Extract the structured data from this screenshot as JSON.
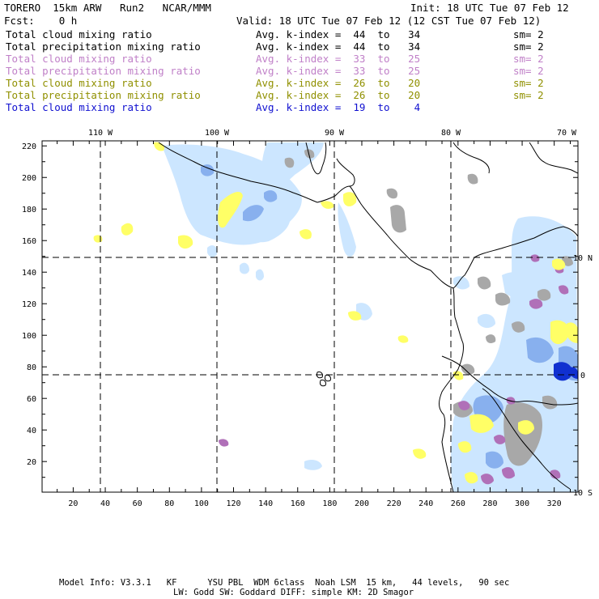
{
  "header": {
    "model": "TORERO  15km ARW   Run2   NCAR/MMM",
    "init": "Init: 18 UTC Tue 07 Feb 12",
    "fcst": "Fcst:    0 h",
    "valid": "Valid: 18 UTC Tue 07 Feb 12 (12 CST Tue 07 Feb 12)"
  },
  "legend": [
    {
      "field": "Total cloud mixing ratio",
      "avg": "Avg. k-index =  44  to   34",
      "sm": "sm= 2",
      "color": "#000000"
    },
    {
      "field": "Total precipitation mixing ratio",
      "avg": "Avg. k-index =  44  to   34",
      "sm": "sm= 2",
      "color": "#000000"
    },
    {
      "field": "Total cloud mixing ratio",
      "avg": "Avg. k-index =  33  to   25",
      "sm": "sm= 2",
      "color": "#c080c8"
    },
    {
      "field": "Total precipitation mixing ratio",
      "avg": "Avg. k-index =  33  to   25",
      "sm": "sm= 2",
      "color": "#c080c8"
    },
    {
      "field": "Total cloud mixing ratio",
      "avg": "Avg. k-index =  26  to   20",
      "sm": "sm= 2",
      "color": "#909000"
    },
    {
      "field": "Total precipitation mixing ratio",
      "avg": "Avg. k-index =  26  to   20",
      "sm": "sm= 2",
      "color": "#909000"
    },
    {
      "field": "Total cloud mixing ratio",
      "avg": "Avg. k-index =  19  to    4",
      "sm": "",
      "color": "#1010d0"
    }
  ],
  "map": {
    "lon_labels": [
      "110 W",
      "100 W",
      "90 W",
      "80 W",
      "70 W"
    ],
    "lat_labels": [
      "10 N",
      "0",
      "10 S"
    ],
    "x_ticks": [
      "20",
      "40",
      "60",
      "80",
      "100",
      "120",
      "140",
      "160",
      "180",
      "200",
      "220",
      "240",
      "260",
      "280",
      "300",
      "320"
    ],
    "y_ticks": [
      "220",
      "200",
      "180",
      "160",
      "140",
      "120",
      "100",
      "80",
      "60",
      "40",
      "20"
    ],
    "colors": {
      "gray": "#a8a8a8",
      "purple": "#b070b8",
      "yellow": "#ffff66",
      "lightblue": "#cce6ff",
      "midblue": "#88b0ee",
      "darkblue": "#1030d0"
    }
  },
  "footer": {
    "line1": "Model Info: V3.3.1   KF      YSU PBL  WDM 6class  Noah LSM  15 km,   44 levels,   90 sec",
    "line2": "LW: Godd SW: Goddard DIFF: simple KM: 2D Smagor"
  }
}
